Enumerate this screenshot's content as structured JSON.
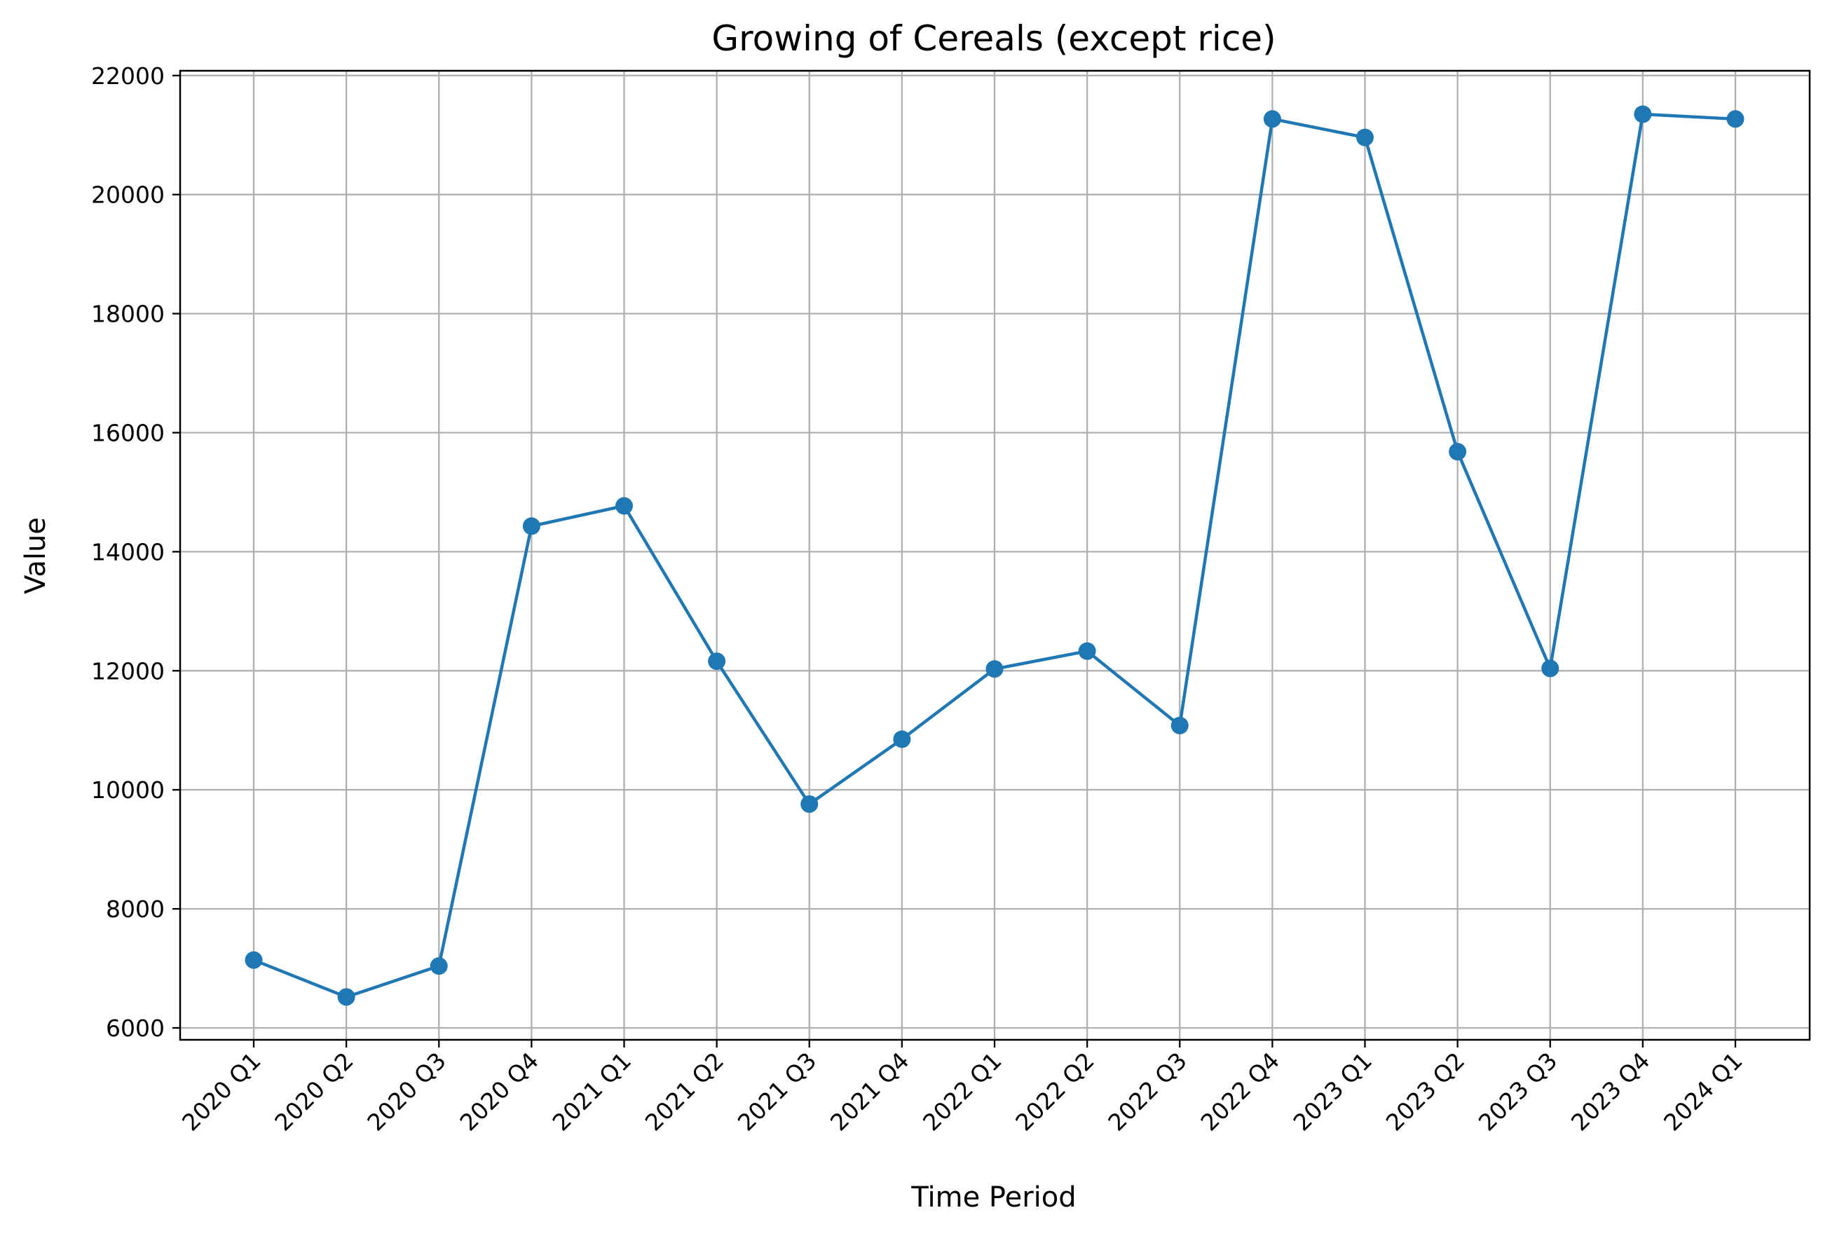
{
  "chart_data": {
    "type": "line",
    "title": "Growing of Cereals (except rice)",
    "xlabel": "Time Period",
    "ylabel": "Value",
    "categories": [
      "2020 Q1",
      "2020 Q2",
      "2020 Q3",
      "2020 Q4",
      "2021 Q1",
      "2021 Q2",
      "2021 Q3",
      "2021 Q4",
      "2022 Q1",
      "2022 Q2",
      "2022 Q3",
      "2022 Q4",
      "2023 Q1",
      "2023 Q2",
      "2023 Q3",
      "2023 Q4",
      "2024 Q1"
    ],
    "series": [
      {
        "name": "Value",
        "color": "#1f77b4",
        "values": [
          7140,
          6520,
          7040,
          14430,
          14770,
          12160,
          9760,
          10850,
          12030,
          12330,
          11080,
          21270,
          20960,
          15680,
          12040,
          21350,
          21270
        ]
      }
    ],
    "ylim": [
      5800,
      22080
    ],
    "yticks": [
      6000,
      8000,
      10000,
      12000,
      14000,
      16000,
      18000,
      20000,
      22000
    ],
    "grid": true
  }
}
